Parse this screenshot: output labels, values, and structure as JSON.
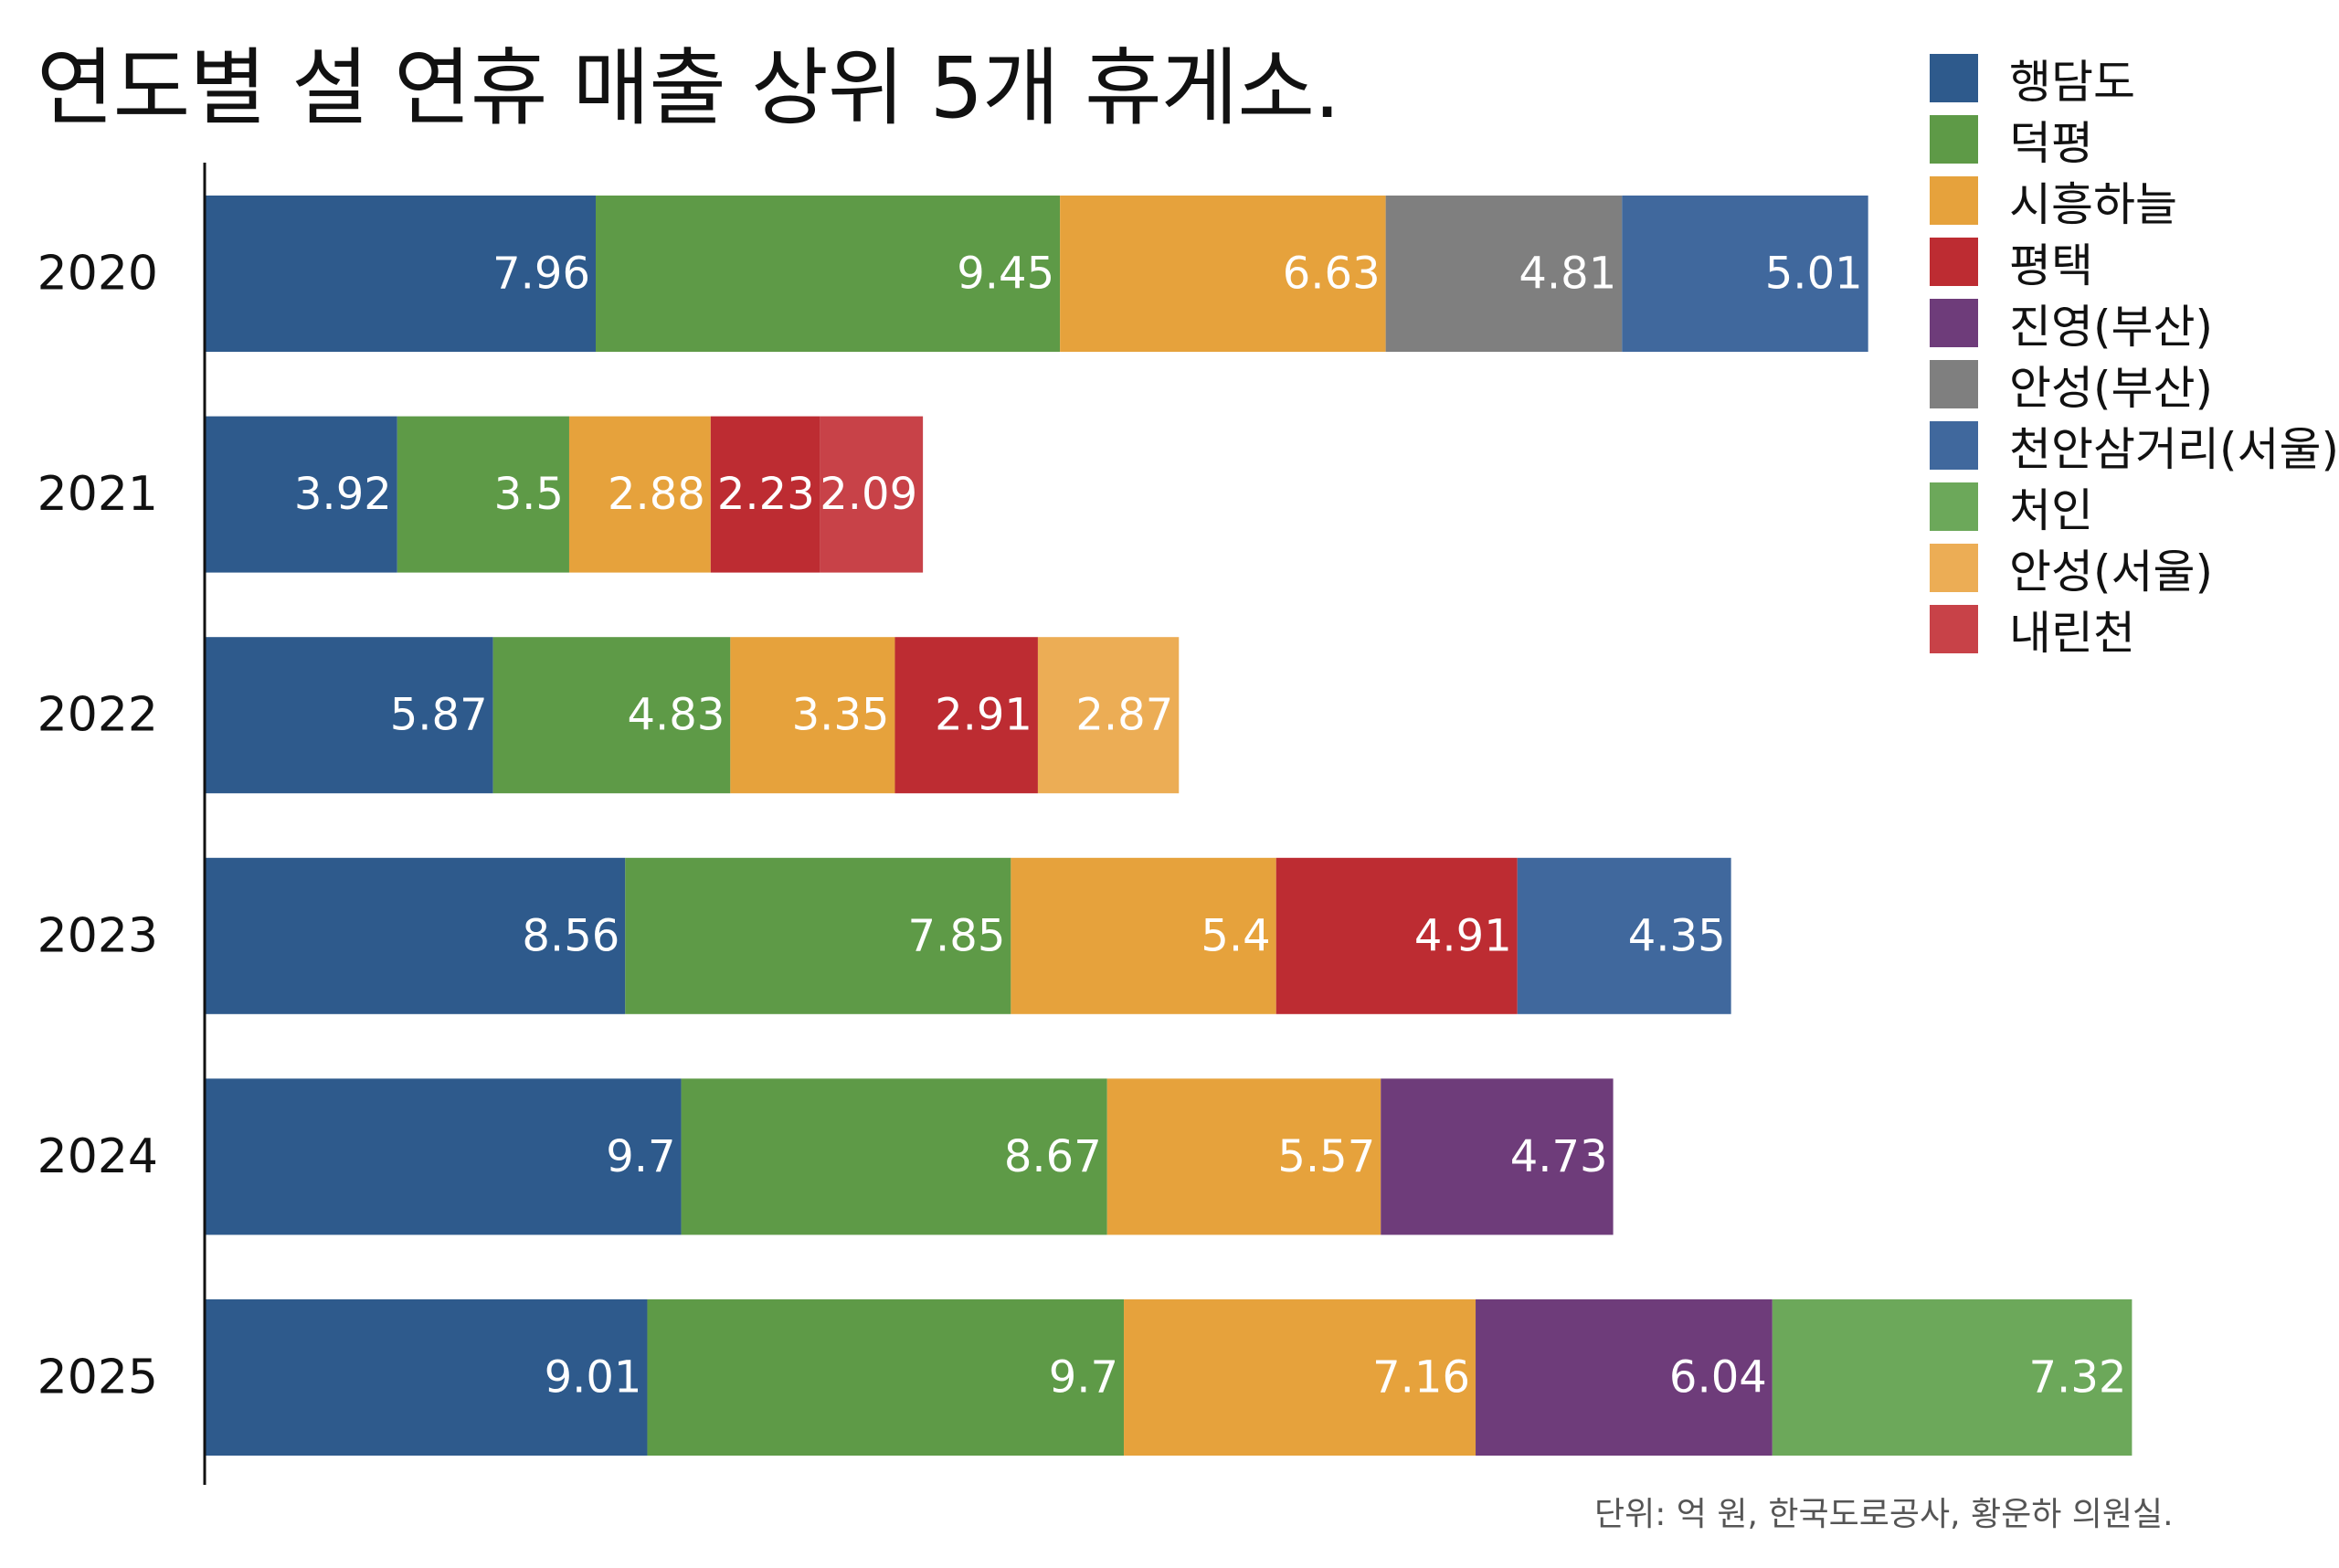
{
  "title": "연도별 설 연휴 매출 상위 5개 휴게소.",
  "source_note": "단위: 억 원, 한국도로공사, 황운하 의원실.",
  "legend": [
    {
      "name": "행담도",
      "color": "#2e5a8c"
    },
    {
      "name": "덕평",
      "color": "#5e9a47"
    },
    {
      "name": "시흥하늘",
      "color": "#e6a23c"
    },
    {
      "name": "평택",
      "color": "#bd2c32"
    },
    {
      "name": "진영(부산)",
      "color": "#6e3c7a"
    },
    {
      "name": "안성(부산)",
      "color": "#7f7f7f"
    },
    {
      "name": "천안삼거리(서울)",
      "color": "#40689d"
    },
    {
      "name": "처인",
      "color": "#6ca85a"
    },
    {
      "name": "안성(서울)",
      "color": "#ecad55"
    },
    {
      "name": "내린천",
      "color": "#c84248"
    }
  ],
  "chart_data": {
    "type": "bar",
    "orientation": "horizontal",
    "stacked": true,
    "title": "연도별 설 연휴 매출 상위 5개 휴게소.",
    "unit_note": "단위: 억 원",
    "categories": [
      "2020",
      "2021",
      "2022",
      "2023",
      "2024",
      "2025"
    ],
    "xlim": [
      0,
      40
    ],
    "legend_position": "top-right",
    "grid": false,
    "rows": [
      {
        "year": "2020",
        "segments": [
          {
            "name": "행담도",
            "value": 7.96,
            "label": "7.96"
          },
          {
            "name": "덕평",
            "value": 9.45,
            "label": "9.45"
          },
          {
            "name": "시흥하늘",
            "value": 6.63,
            "label": "6.63"
          },
          {
            "name": "안성(부산)",
            "value": 4.81,
            "label": "4.81"
          },
          {
            "name": "천안삼거리(서울)",
            "value": 5.01,
            "label": "5.01"
          }
        ]
      },
      {
        "year": "2021",
        "segments": [
          {
            "name": "행담도",
            "value": 3.92,
            "label": "3.92"
          },
          {
            "name": "덕평",
            "value": 3.5,
            "label": "3.5"
          },
          {
            "name": "시흥하늘",
            "value": 2.88,
            "label": "2.88"
          },
          {
            "name": "평택",
            "value": 2.23,
            "label": "2.23"
          },
          {
            "name": "내린천",
            "value": 2.09,
            "label": "2.09"
          }
        ]
      },
      {
        "year": "2022",
        "segments": [
          {
            "name": "행담도",
            "value": 5.87,
            "label": "5.87"
          },
          {
            "name": "덕평",
            "value": 4.83,
            "label": "4.83"
          },
          {
            "name": "시흥하늘",
            "value": 3.35,
            "label": "3.35"
          },
          {
            "name": "평택",
            "value": 2.91,
            "label": "2.91"
          },
          {
            "name": "안성(서울)",
            "value": 2.87,
            "label": "2.87"
          }
        ]
      },
      {
        "year": "2023",
        "segments": [
          {
            "name": "행담도",
            "value": 8.56,
            "label": "8.56"
          },
          {
            "name": "덕평",
            "value": 7.85,
            "label": "7.85"
          },
          {
            "name": "시흥하늘",
            "value": 5.4,
            "label": "5.4"
          },
          {
            "name": "평택",
            "value": 4.91,
            "label": "4.91"
          },
          {
            "name": "천안삼거리(서울)",
            "value": 4.35,
            "label": "4.35"
          }
        ]
      },
      {
        "year": "2024",
        "segments": [
          {
            "name": "행담도",
            "value": 9.7,
            "label": "9.7"
          },
          {
            "name": "덕평",
            "value": 8.67,
            "label": "8.67"
          },
          {
            "name": "시흥하늘",
            "value": 5.57,
            "label": "5.57"
          },
          {
            "name": "진영(부산)",
            "value": 4.73,
            "label": "4.73"
          }
        ]
      },
      {
        "year": "2025",
        "segments": [
          {
            "name": "행담도",
            "value": 9.01,
            "label": "9.01"
          },
          {
            "name": "덕평",
            "value": 9.7,
            "label": "9.7"
          },
          {
            "name": "시흥하늘",
            "value": 7.16,
            "label": "7.16"
          },
          {
            "name": "진영(부산)",
            "value": 6.04,
            "label": "6.04"
          },
          {
            "name": "처인",
            "value": 7.32,
            "label": "7.32"
          }
        ]
      }
    ]
  }
}
